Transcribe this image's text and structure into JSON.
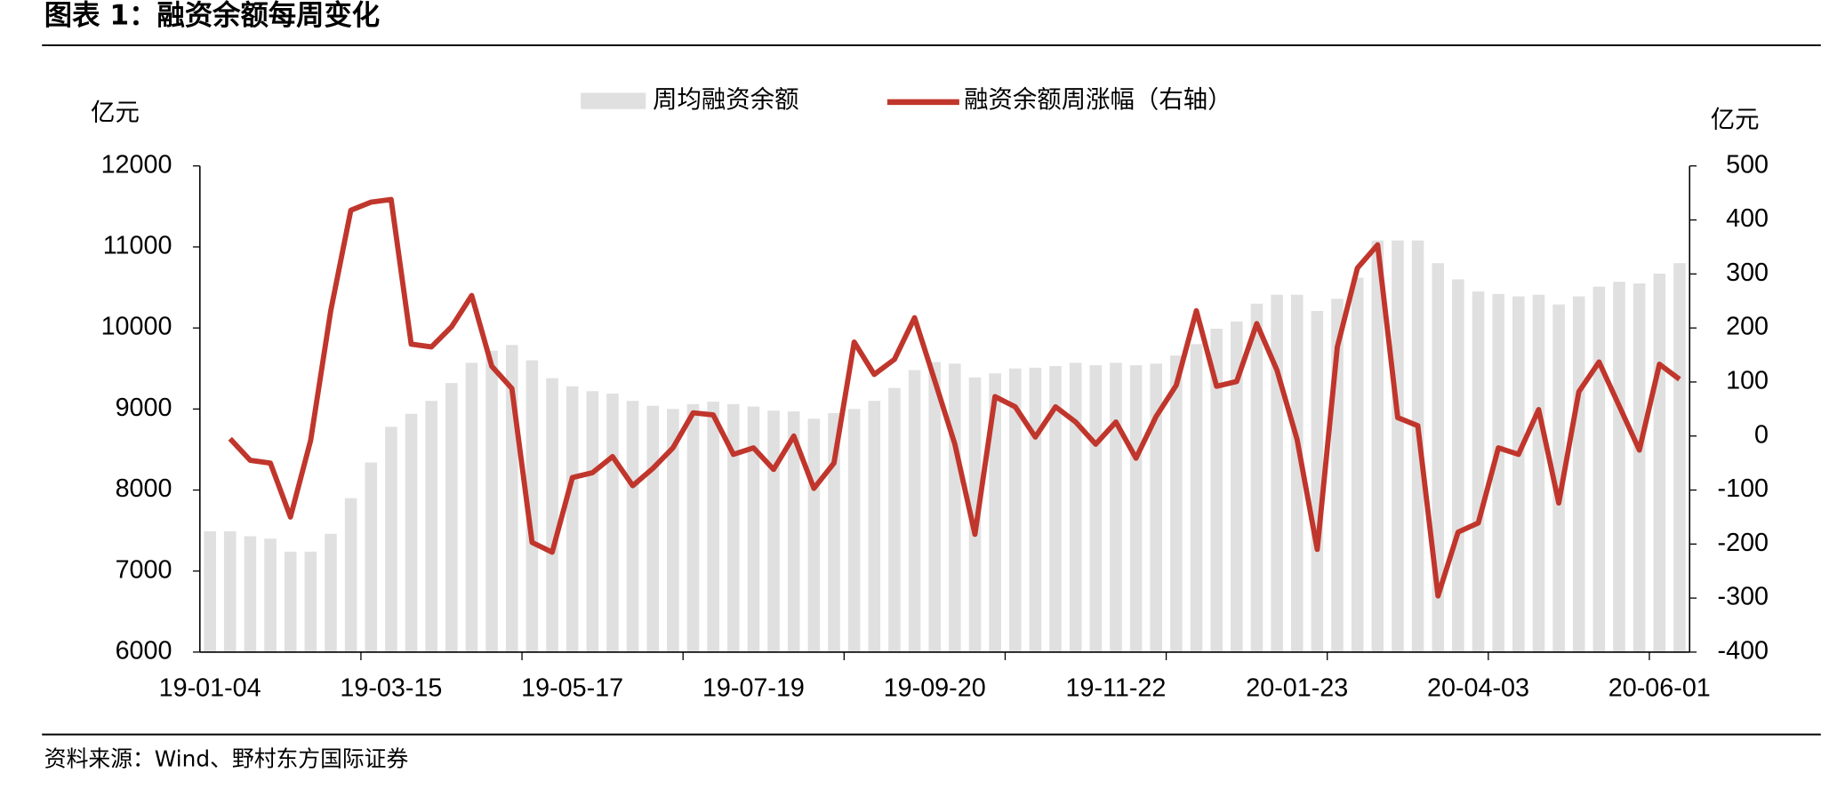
{
  "chart_data": {
    "type": "bar-line",
    "title": "图表 1：融资余额每周变化",
    "source": "资料来源：Wind、野村东方国际证券",
    "y_label": "亿元",
    "y2_label": "亿元",
    "categories": [
      "19-01-04",
      null,
      null,
      null,
      null,
      null,
      null,
      null,
      null,
      "19-03-15",
      null,
      null,
      null,
      null,
      null,
      null,
      null,
      null,
      "19-05-17",
      null,
      null,
      null,
      null,
      null,
      null,
      null,
      null,
      "19-07-19",
      null,
      null,
      null,
      null,
      null,
      null,
      null,
      null,
      "19-09-20",
      null,
      null,
      null,
      null,
      null,
      null,
      null,
      null,
      "19-11-22",
      null,
      null,
      null,
      null,
      null,
      null,
      null,
      null,
      "20-01-23",
      null,
      null,
      null,
      null,
      null,
      null,
      null,
      null,
      "20-04-03",
      null,
      null,
      null,
      null,
      null,
      null,
      null,
      null,
      "20-06-01",
      null
    ],
    "series": [
      {
        "name": "周均融资余额",
        "type": "bar",
        "color": "#e0e0e0",
        "values": [
          7490,
          7490,
          7430,
          7400,
          7240,
          7240,
          7460,
          7900,
          8340,
          8780,
          8940,
          9100,
          9320,
          9570,
          9720,
          9790,
          9600,
          9380,
          9280,
          9220,
          9190,
          9100,
          9040,
          9000,
          9060,
          9090,
          9060,
          9030,
          8980,
          8970,
          8880,
          8950,
          9000,
          9100,
          9260,
          9480,
          9580,
          9560,
          9390,
          9440,
          9500,
          9510,
          9530,
          9570,
          9540,
          9570,
          9540,
          9560,
          9660,
          9800,
          9990,
          10080,
          10300,
          10410,
          10410,
          10210,
          10360,
          10620,
          11080,
          11080,
          11080,
          10800,
          10600,
          10450,
          10420,
          10390,
          10410,
          10290,
          10390,
          10510,
          10570,
          10550,
          10670,
          10800
        ]
      },
      {
        "name": "融资余额周涨幅（右轴）",
        "type": "line",
        "axis": "y2",
        "color": "#c0362c",
        "values": [
          null,
          -5,
          -45,
          -50,
          -150,
          -8,
          232,
          418,
          433,
          438,
          170,
          165,
          202,
          260,
          129,
          88,
          -197,
          -215,
          -77,
          -68,
          -38,
          -92,
          -60,
          -22,
          43,
          39,
          -34,
          -22,
          -62,
          0,
          -97,
          -50,
          174,
          114,
          142,
          219,
          103,
          -15,
          -182,
          73,
          54,
          -2,
          54,
          26,
          -15,
          26,
          -41,
          36,
          94,
          232,
          92,
          101,
          208,
          122,
          -6,
          -210,
          165,
          311,
          354,
          34,
          19,
          -296,
          -178,
          -161,
          -22,
          -34,
          49,
          -124,
          82,
          137,
          56,
          -26,
          133,
          105
        ]
      }
    ],
    "ylim": [
      6000,
      12000
    ],
    "yticks": [
      6000,
      7000,
      8000,
      9000,
      10000,
      11000,
      12000
    ],
    "y2lim": [
      -400,
      500
    ],
    "y2ticks": [
      -400,
      -300,
      -200,
      -100,
      0,
      100,
      200,
      300,
      400,
      500
    ]
  }
}
